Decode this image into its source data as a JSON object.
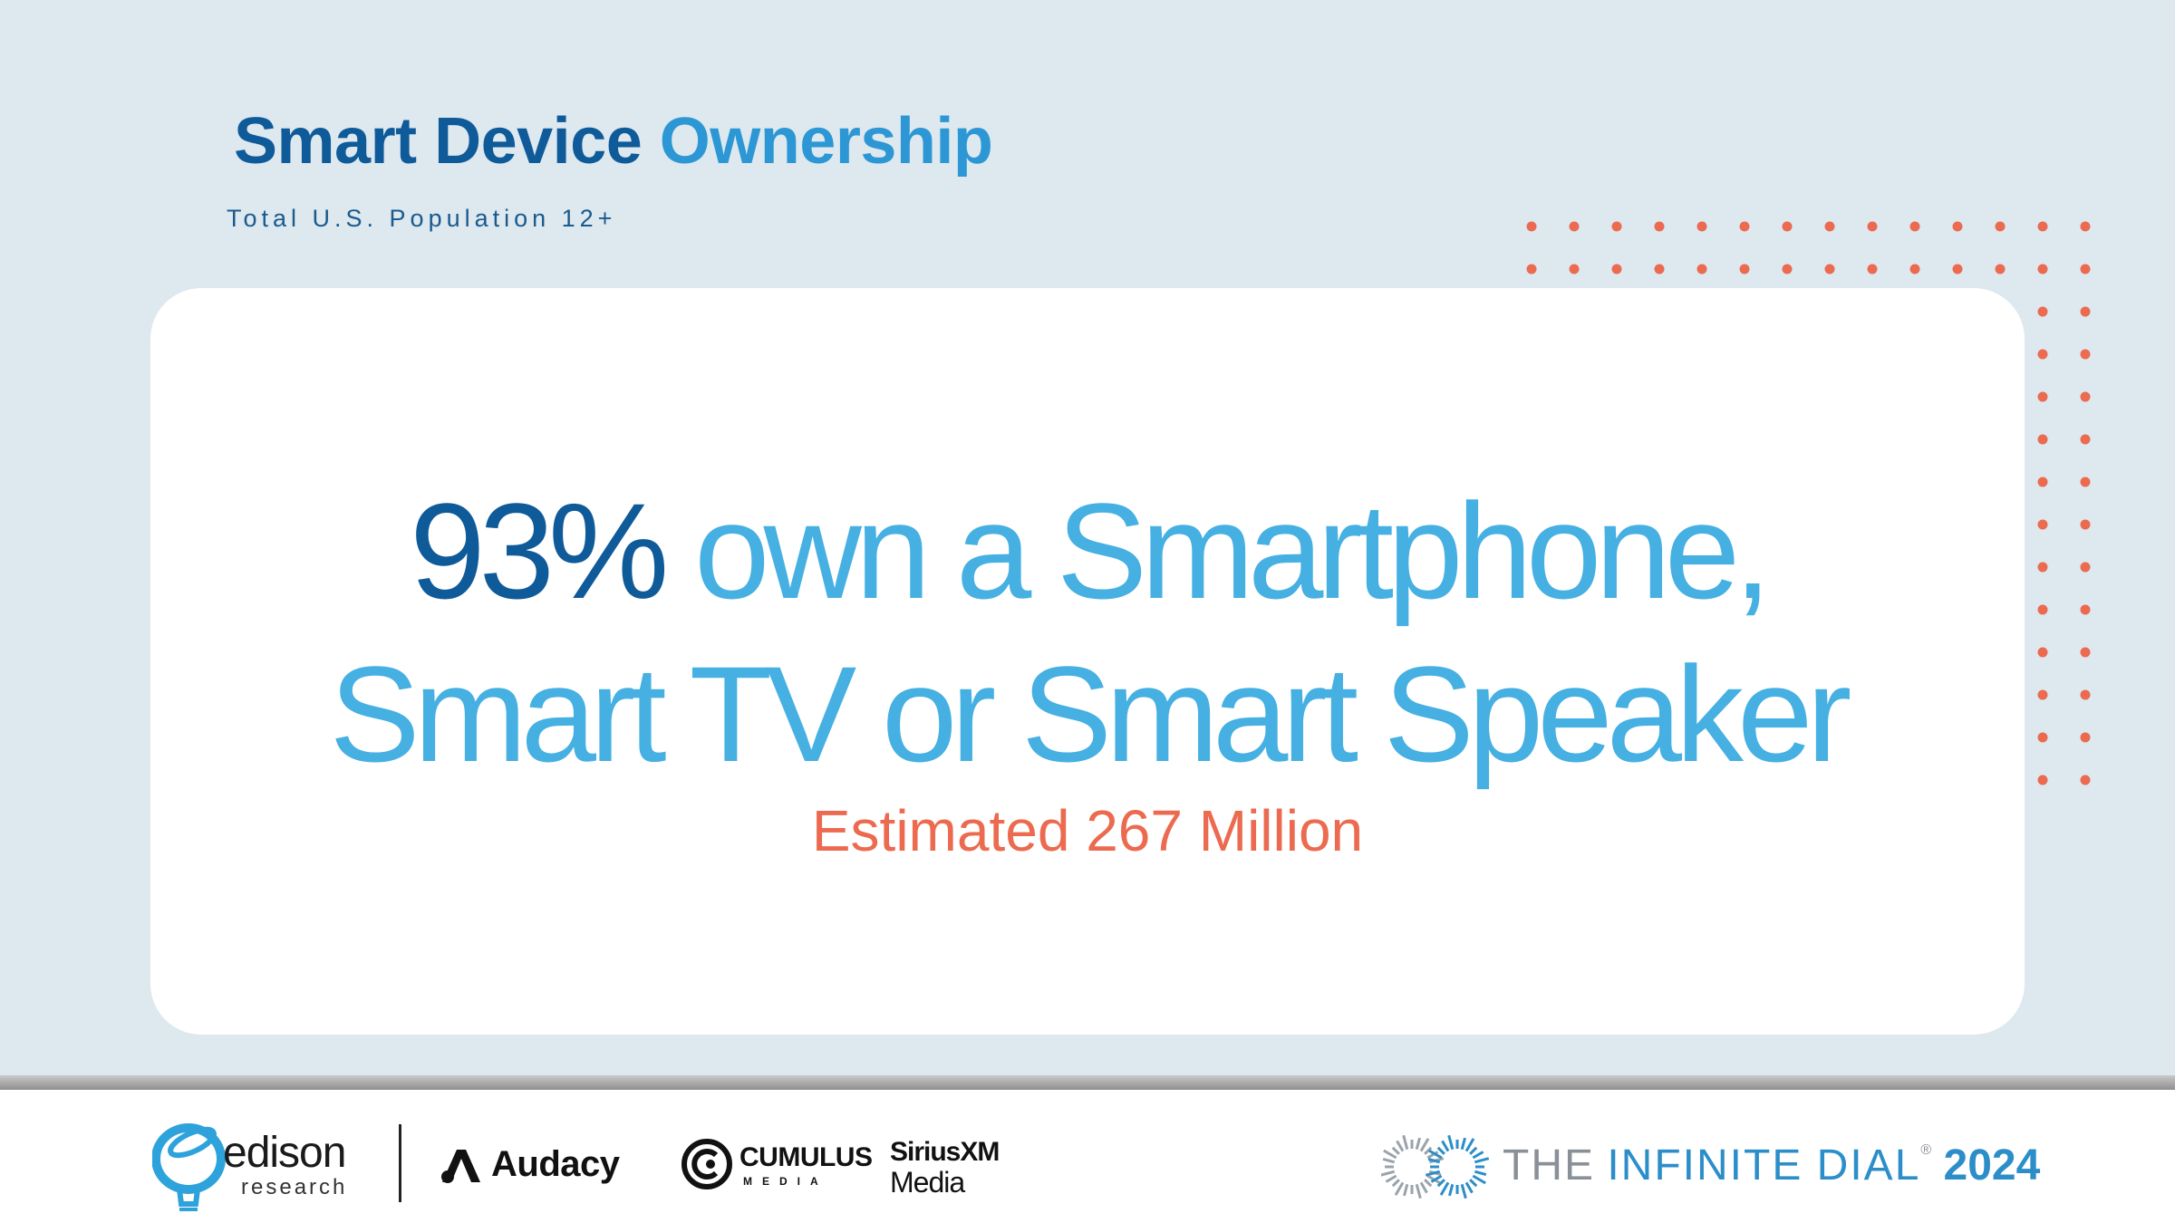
{
  "header": {
    "title_part1": "Smart Device",
    "title_part2": "Ownership",
    "subtitle": "Total U.S. Population 12+"
  },
  "card": {
    "headline_pct": "93%",
    "headline_line1_rest": "own a Smartphone,",
    "headline_line2": "Smart TV or Smart Speaker",
    "estimate": "Estimated 267 Million"
  },
  "footer": {
    "logos": {
      "edison_word": "edison",
      "edison_sub": "research",
      "audacy": "Audacy",
      "cumulus_word": "CUMULUS",
      "cumulus_sub": "MEDIA",
      "sirius_word": "SiriusXM",
      "sirius_sub": "Media",
      "dial_the": "THE",
      "dial_main": "INFINITE DIAL",
      "dial_reg": "®",
      "dial_year": "2024"
    }
  },
  "colors": {
    "background": "#dde8ef",
    "dark_blue": "#0f5a99",
    "light_blue": "#46b0e2",
    "accent_coral": "#ec6a4f",
    "card": "#ffffff"
  },
  "icons": [
    "edison-logo-icon",
    "audacy-logo-icon",
    "cumulus-logo-icon",
    "infinite-dial-logo-icon",
    "decorative-dot-grid"
  ]
}
